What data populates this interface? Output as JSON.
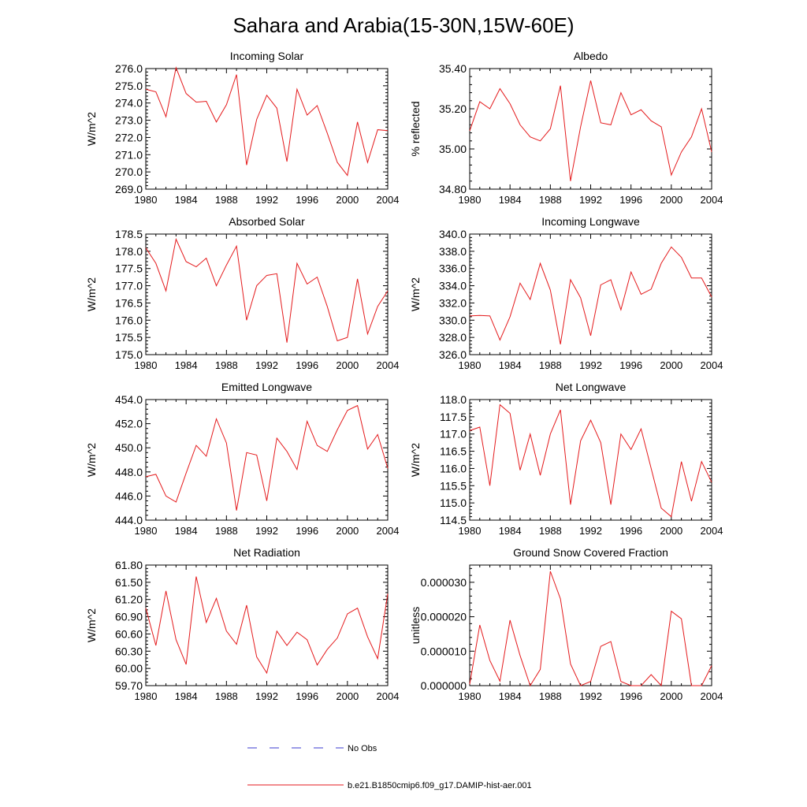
{
  "figure": {
    "title": "Sahara and Arabia(15-30N,15W-60E)",
    "legend": [
      {
        "label": "No Obs",
        "color": "#3a3acf",
        "style": "dashed"
      },
      {
        "label": "b.e21.B1850cmip6.f09_g17.DAMIP-hist-aer.001",
        "color": "#e41a1c",
        "style": "solid"
      }
    ]
  },
  "chart_data": [
    {
      "type": "line",
      "title": "Incoming Solar",
      "ylabel": "W/m^2",
      "xlabel": "",
      "xlim": [
        1980,
        2004
      ],
      "ylim": [
        269.0,
        276.0
      ],
      "xticks": [
        "1980",
        "1984",
        "1988",
        "1992",
        "1996",
        "2000",
        "2004"
      ],
      "yticks": [
        "269.0",
        "270.0",
        "271.0",
        "272.0",
        "273.0",
        "274.0",
        "275.0",
        "276.0"
      ],
      "x": [
        1980,
        1981,
        1982,
        1983,
        1984,
        1985,
        1986,
        1987,
        1988,
        1989,
        1990,
        1991,
        1992,
        1993,
        1994,
        1995,
        1996,
        1997,
        1998,
        1999,
        2000,
        2001,
        2002,
        2003,
        2004
      ],
      "series": [
        {
          "color": "#e41a1c",
          "values": [
            274.8,
            274.65,
            273.2,
            276.05,
            274.55,
            274.05,
            274.1,
            272.9,
            273.9,
            275.65,
            270.4,
            273.05,
            274.45,
            273.7,
            270.6,
            274.8,
            273.3,
            273.85,
            272.25,
            270.55,
            269.8,
            272.9,
            270.55,
            272.45,
            272.4
          ]
        }
      ]
    },
    {
      "type": "line",
      "title": "Albedo",
      "ylabel": "% reflected",
      "xlabel": "",
      "xlim": [
        1980,
        2004
      ],
      "ylim": [
        34.8,
        35.4
      ],
      "xticks": [
        "1980",
        "1984",
        "1988",
        "1992",
        "1996",
        "2000",
        "2004"
      ],
      "yticks": [
        "34.80",
        "35.00",
        "35.20",
        "35.40"
      ],
      "x": [
        1980,
        1981,
        1982,
        1983,
        1984,
        1985,
        1986,
        1987,
        1988,
        1989,
        1990,
        1991,
        1992,
        1993,
        1994,
        1995,
        1996,
        1997,
        1998,
        1999,
        2000,
        2001,
        2002,
        2003,
        2004
      ],
      "series": [
        {
          "color": "#e41a1c",
          "values": [
            35.09,
            35.235,
            35.2,
            35.3,
            35.225,
            35.12,
            35.06,
            35.04,
            35.1,
            35.315,
            34.84,
            35.11,
            35.34,
            35.13,
            35.12,
            35.28,
            35.17,
            35.195,
            35.14,
            35.11,
            34.87,
            34.985,
            35.06,
            35.2,
            34.985
          ]
        }
      ]
    },
    {
      "type": "line",
      "title": "Absorbed Solar",
      "ylabel": "W/m^2",
      "xlabel": "",
      "xlim": [
        1980,
        2004
      ],
      "ylim": [
        175.0,
        178.5
      ],
      "xticks": [
        "1980",
        "1984",
        "1988",
        "1992",
        "1996",
        "2000",
        "2004"
      ],
      "yticks": [
        "175.0",
        "175.5",
        "176.0",
        "176.5",
        "177.0",
        "177.5",
        "178.0",
        "178.5"
      ],
      "x": [
        1980,
        1981,
        1982,
        1983,
        1984,
        1985,
        1986,
        1987,
        1988,
        1989,
        1990,
        1991,
        1992,
        1993,
        1994,
        1995,
        1996,
        1997,
        1998,
        1999,
        2000,
        2001,
        2002,
        2003,
        2004
      ],
      "series": [
        {
          "color": "#e41a1c",
          "values": [
            178.1,
            177.65,
            176.85,
            178.35,
            177.7,
            177.55,
            177.8,
            177.0,
            177.6,
            178.15,
            176.0,
            177.0,
            177.3,
            177.35,
            175.35,
            177.65,
            177.05,
            177.25,
            176.4,
            175.4,
            175.5,
            177.2,
            175.6,
            176.4,
            176.85
          ]
        }
      ]
    },
    {
      "type": "line",
      "title": "Incoming Longwave",
      "ylabel": "W/m^2",
      "xlabel": "",
      "xlim": [
        1980,
        2004
      ],
      "ylim": [
        326.0,
        340.0
      ],
      "xticks": [
        "1980",
        "1984",
        "1988",
        "1992",
        "1996",
        "2000",
        "2004"
      ],
      "yticks": [
        "326.0",
        "328.0",
        "330.0",
        "332.0",
        "334.0",
        "336.0",
        "338.0",
        "340.0"
      ],
      "x": [
        1980,
        1981,
        1982,
        1983,
        1984,
        1985,
        1986,
        1987,
        1988,
        1989,
        1990,
        1991,
        1992,
        1993,
        1994,
        1995,
        1996,
        1997,
        1998,
        1999,
        2000,
        2001,
        2002,
        2003,
        2004
      ],
      "series": [
        {
          "color": "#e41a1c",
          "values": [
            330.5,
            330.55,
            330.5,
            327.7,
            330.4,
            334.3,
            332.4,
            336.6,
            333.5,
            327.2,
            334.7,
            332.6,
            328.2,
            334.1,
            334.7,
            331.2,
            335.6,
            333.0,
            333.6,
            336.6,
            338.5,
            337.3,
            334.9,
            334.9,
            332.7
          ]
        }
      ]
    },
    {
      "type": "line",
      "title": "Emitted Longwave",
      "ylabel": "W/m^2",
      "xlabel": "",
      "xlim": [
        1980,
        2004
      ],
      "ylim": [
        444.0,
        454.0
      ],
      "xticks": [
        "1980",
        "1984",
        "1988",
        "1992",
        "1996",
        "2000",
        "2004"
      ],
      "yticks": [
        "444.0",
        "446.0",
        "448.0",
        "450.0",
        "452.0",
        "454.0"
      ],
      "x": [
        1980,
        1981,
        1982,
        1983,
        1984,
        1985,
        1986,
        1987,
        1988,
        1989,
        1990,
        1991,
        1992,
        1993,
        1994,
        1995,
        1996,
        1997,
        1998,
        1999,
        2000,
        2001,
        2002,
        2003,
        2004
      ],
      "series": [
        {
          "color": "#e41a1c",
          "values": [
            447.6,
            447.8,
            446.0,
            445.5,
            447.9,
            450.2,
            449.3,
            452.4,
            450.4,
            444.8,
            449.6,
            449.4,
            445.6,
            450.8,
            449.7,
            448.2,
            452.2,
            450.2,
            449.7,
            451.5,
            453.1,
            453.5,
            449.9,
            451.1,
            448.3
          ]
        }
      ]
    },
    {
      "type": "line",
      "title": "Net Longwave",
      "ylabel": "W/m^2",
      "xlabel": "",
      "xlim": [
        1980,
        2004
      ],
      "ylim": [
        114.5,
        118.0
      ],
      "xticks": [
        "1980",
        "1984",
        "1988",
        "1992",
        "1996",
        "2000",
        "2004"
      ],
      "yticks": [
        "114.5",
        "115.0",
        "115.5",
        "116.0",
        "116.5",
        "117.0",
        "117.5",
        "118.0"
      ],
      "x": [
        1980,
        1981,
        1982,
        1983,
        1984,
        1985,
        1986,
        1987,
        1988,
        1989,
        1990,
        1991,
        1992,
        1993,
        1994,
        1995,
        1996,
        1997,
        1998,
        1999,
        2000,
        2001,
        2002,
        2003,
        2004
      ],
      "series": [
        {
          "color": "#e41a1c",
          "values": [
            117.1,
            117.2,
            115.5,
            117.85,
            117.6,
            115.95,
            117.0,
            115.8,
            117.0,
            117.7,
            114.95,
            116.8,
            117.4,
            116.75,
            114.95,
            117.0,
            116.55,
            117.15,
            116.0,
            114.85,
            114.6,
            116.2,
            115.05,
            116.2,
            115.6
          ]
        }
      ]
    },
    {
      "type": "line",
      "title": "Net Radiation",
      "ylabel": "W/m^2",
      "xlabel": "",
      "xlim": [
        1980,
        2004
      ],
      "ylim": [
        59.7,
        61.8
      ],
      "xticks": [
        "1980",
        "1984",
        "1988",
        "1992",
        "1996",
        "2000",
        "2004"
      ],
      "yticks": [
        "59.70",
        "60.00",
        "60.30",
        "60.60",
        "60.90",
        "61.20",
        "61.50",
        "61.80"
      ],
      "x": [
        1980,
        1981,
        1982,
        1983,
        1984,
        1985,
        1986,
        1987,
        1988,
        1989,
        1990,
        1991,
        1992,
        1993,
        1994,
        1995,
        1996,
        1997,
        1998,
        1999,
        2000,
        2001,
        2002,
        2003,
        2004
      ],
      "series": [
        {
          "color": "#e41a1c",
          "values": [
            61.05,
            60.4,
            61.35,
            60.5,
            60.07,
            61.6,
            60.8,
            61.22,
            60.65,
            60.42,
            61.1,
            60.2,
            59.92,
            60.65,
            60.4,
            60.63,
            60.5,
            60.06,
            60.33,
            60.53,
            60.95,
            61.05,
            60.55,
            60.17,
            61.3
          ]
        }
      ]
    },
    {
      "type": "line",
      "title": "Ground Snow Covered Fraction",
      "ylabel": "unitless",
      "xlabel": "",
      "xlim": [
        1980,
        2004
      ],
      "ylim": [
        0.0,
        3.5e-05
      ],
      "xticks": [
        "1980",
        "1984",
        "1988",
        "1992",
        "1996",
        "2000",
        "2004"
      ],
      "yticks": [
        "0.000000",
        "0.000010",
        "0.000020",
        "0.000030"
      ],
      "x": [
        1980,
        1981,
        1982,
        1983,
        1984,
        1985,
        1986,
        1987,
        1988,
        1989,
        1990,
        1991,
        1992,
        1993,
        1994,
        1995,
        1996,
        1997,
        1998,
        1999,
        2000,
        2001,
        2002,
        2003,
        2004
      ],
      "series": [
        {
          "color": "#e41a1c",
          "values": [
            4e-07,
            1.76e-05,
            7.3e-06,
            1.3e-06,
            1.9e-05,
            8.7e-06,
            0.0,
            4.7e-06,
            3.32e-05,
            2.52e-05,
            6.3e-06,
            0.0,
            1.2e-06,
            1.14e-05,
            1.28e-05,
            1.2e-06,
            0.0,
            0.0,
            3.2e-06,
            0.0,
            2.16e-05,
            1.94e-05,
            0.0,
            0.0,
            5.8e-06
          ]
        }
      ]
    }
  ]
}
